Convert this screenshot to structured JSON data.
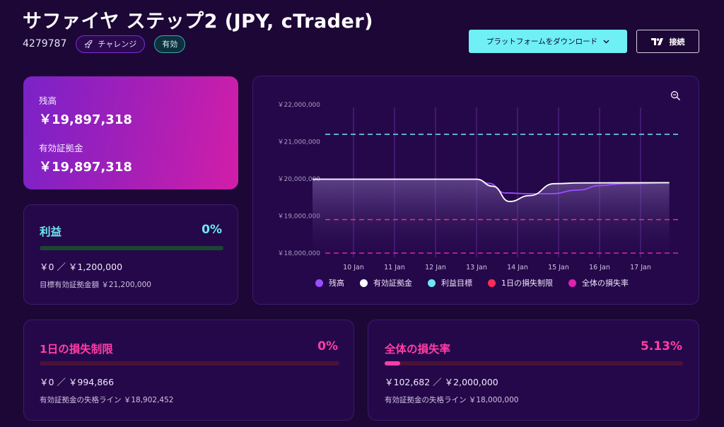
{
  "header": {
    "title": "サファイヤ ステップ2 (JPY, cTrader)",
    "account_id": "4279787",
    "badge_challenge": "チャレンジ",
    "badge_active": "有効",
    "download_button": "プラットフォームをダウンロード",
    "connect_button": "接続"
  },
  "balance": {
    "balance_label": "残高",
    "balance_value": "￥19,897,318",
    "equity_label": "有効証拠金",
    "equity_value": "￥19,897,318"
  },
  "profit": {
    "title": "利益",
    "percent": "0%",
    "progress": 0,
    "amount": "￥0 ／ ￥1,200,000",
    "target_text": "目標有効証拠金額 ￥21,200,000",
    "color": "#6ee7f0"
  },
  "daily_loss": {
    "title": "1日の損失制限",
    "percent": "0%",
    "progress": 0,
    "amount": "￥0 ／ ￥994,866",
    "limit_text": "有効証拠金の失格ライン ￥18,902,452",
    "color": "#ff3ea5"
  },
  "total_loss": {
    "title": "全体の損失率",
    "percent": "5.13%",
    "progress": 0.0513,
    "amount": "￥102,682 ／ ￥2,000,000",
    "limit_text": "有効証拠金の失格ライン ￥18,000,000",
    "color": "#ff3ea5"
  },
  "chart_data": {
    "type": "line",
    "x": [
      "10 Jan",
      "11 Jan",
      "12 Jan",
      "13 Jan",
      "14 Jan",
      "15 Jan",
      "16 Jan",
      "17 Jan"
    ],
    "y_ticks": [
      "￥22,000,000",
      "￥21,000,000",
      "￥20,000,000",
      "￥19,000,000",
      "￥18,000,000"
    ],
    "ylim": [
      18000000,
      22000000
    ],
    "series": [
      {
        "name": "残高",
        "color": "#9b4dff",
        "points": [
          [
            "09 Jan",
            19990000
          ],
          [
            "13 Jan",
            19990000
          ],
          [
            "13.3 Jan",
            19880000
          ],
          [
            "13.7 Jan",
            19620000
          ],
          [
            "14.3 Jan",
            19600000
          ],
          [
            "14.8 Jan",
            19600000
          ],
          [
            "15.5 Jan",
            19700000
          ],
          [
            "16 Jan",
            19820000
          ],
          [
            "16.6 Jan",
            19870000
          ],
          [
            "17.7 Jan",
            19890000
          ]
        ]
      },
      {
        "name": "有効証拠金",
        "color": "#ffffff",
        "points": [
          [
            "09 Jan",
            19990000
          ],
          [
            "13 Jan",
            19990000
          ],
          [
            "13.4 Jan",
            19800000
          ],
          [
            "13.8 Jan",
            19390000
          ],
          [
            "14.3 Jan",
            19550000
          ],
          [
            "14.9 Jan",
            19870000
          ],
          [
            "15.5 Jan",
            19890000
          ],
          [
            "17.7 Jan",
            19897318
          ]
        ]
      },
      {
        "name": "利益目標",
        "color": "#6ee7f0",
        "value": 21200000
      },
      {
        "name": "1日の損失制限",
        "color": "#ff2d55",
        "value": 18902452
      },
      {
        "name": "全体の損失率",
        "color": "#e020b0",
        "value": 18000000
      }
    ]
  }
}
